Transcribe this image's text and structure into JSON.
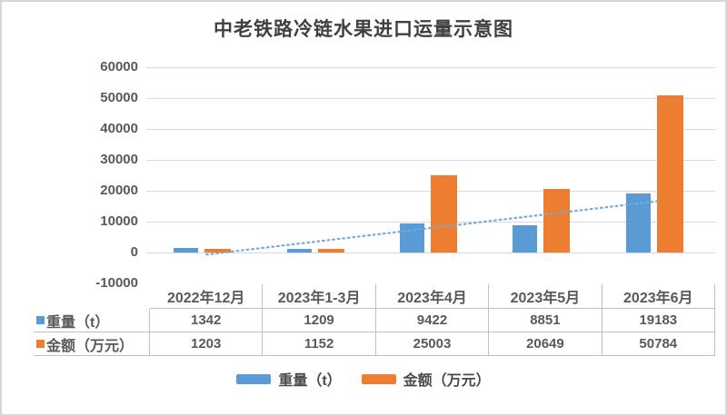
{
  "title": "中老铁路冷链水果进口运量示意图",
  "chart_data": {
    "type": "bar",
    "title": "中老铁路冷链水果进口运量示意图",
    "categories": [
      "2022年12月",
      "2023年1-3月",
      "2023年4月",
      "2023年5月",
      "2023年6月"
    ],
    "series": [
      {
        "name": "重量（t）",
        "color": "#5B9BD5",
        "values": [
          1342,
          1209,
          9422,
          8851,
          19183
        ]
      },
      {
        "name": "金额（万元）",
        "color": "#ED7D31",
        "values": [
          1203,
          1152,
          25003,
          20649,
          50784
        ]
      }
    ],
    "ylim": [
      -10000,
      60000
    ],
    "ytick_step": 10000,
    "y_tick_labels": [
      "60000",
      "50000",
      "40000",
      "30000",
      "20000",
      "10000",
      "0",
      "-10000"
    ],
    "grid": "horizontal",
    "legend_position": "bottom",
    "data_table_shown": true,
    "trendline": {
      "series": "重量（t）",
      "style": "dotted",
      "color": "#74A9DF",
      "start_value": -663,
      "end_value": 16666
    }
  },
  "colors": {
    "weight_bar": "#5B9BD5",
    "amount_bar": "#ED7D31",
    "gridline": "#D9D9D9",
    "table_border": "#BFBFBF",
    "text": "#595959"
  }
}
